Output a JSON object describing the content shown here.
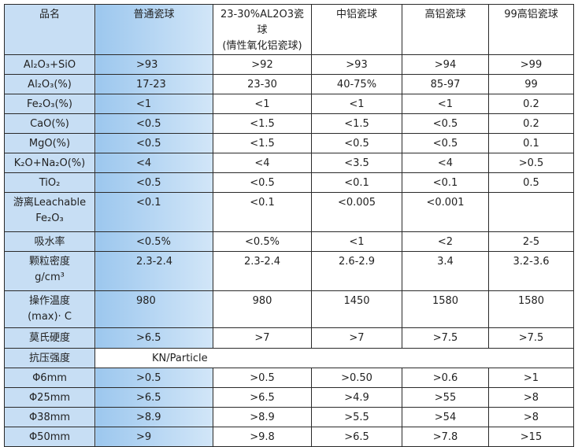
{
  "table": {
    "header": [
      "品名",
      "普通瓷球",
      "23-30%AL2O3瓷球\n(情性氧化铝瓷球)",
      "中铝瓷球",
      "高铝瓷球",
      "99高铝瓷球"
    ],
    "rows": [
      [
        "Al₂O₃+SiO",
        ">93",
        ">92",
        ">93",
        ">94",
        ">99"
      ],
      [
        "Al₂O₃(%)",
        "17-23",
        "23-30",
        "40-75%",
        "85-97",
        "99"
      ],
      [
        "Fe₂O₃(%)",
        "<1",
        "<1",
        "<1",
        "<1",
        "0.2"
      ],
      [
        "CaO(%)",
        "<0.5",
        "<1.5",
        "<1.5",
        "<0.5",
        "0.2"
      ],
      [
        "MgO(%)",
        "<0.5",
        "<1.5",
        "<0.5",
        "<0.5",
        "0.1"
      ],
      [
        "K₂O+Na₂O(%)",
        "<4",
        "<4",
        "<3.5",
        "<4",
        ">0.5"
      ],
      [
        "TiO₂",
        "<0.5",
        "<0.5",
        "<0.1",
        "<0.1",
        "0.5"
      ],
      [
        "游离Leachable\nFe₂O₃",
        "<0.1",
        "<0.1",
        "<0.005",
        "<0.001"
      ],
      [
        "吸水率",
        "<0.5%",
        "<0.5%",
        "<1",
        "<2",
        "2-5"
      ],
      [
        "颗粒密度\ng/cm³",
        "2.3-2.4",
        "2.3-2.4",
        "2.6-2.9",
        "3.4",
        "3.2-3.6"
      ],
      [
        "操作温度\n(max)· C",
        "980",
        "980",
        "1450",
        "1580",
        "1580"
      ],
      [
        "莫氏硬度",
        ">6.5",
        ">7",
        ">7",
        ">7.5",
        ">7.5"
      ],
      [
        "抗压强度",
        "KN/Particle"
      ],
      [
        "Φ6mm",
        ">0.5",
        ">0.5",
        ">0.50",
        ">0.6",
        ">1"
      ],
      [
        "Φ25mm",
        ">6.5",
        ">6.5",
        ">4.9",
        ">55",
        ">8"
      ],
      [
        "Φ38mm",
        ">8.9",
        ">8.9",
        ">5.5",
        ">54",
        ">8"
      ],
      [
        "Φ50mm",
        ">9",
        ">9.8",
        ">6.5",
        ">7.8",
        ">15"
      ]
    ]
  }
}
